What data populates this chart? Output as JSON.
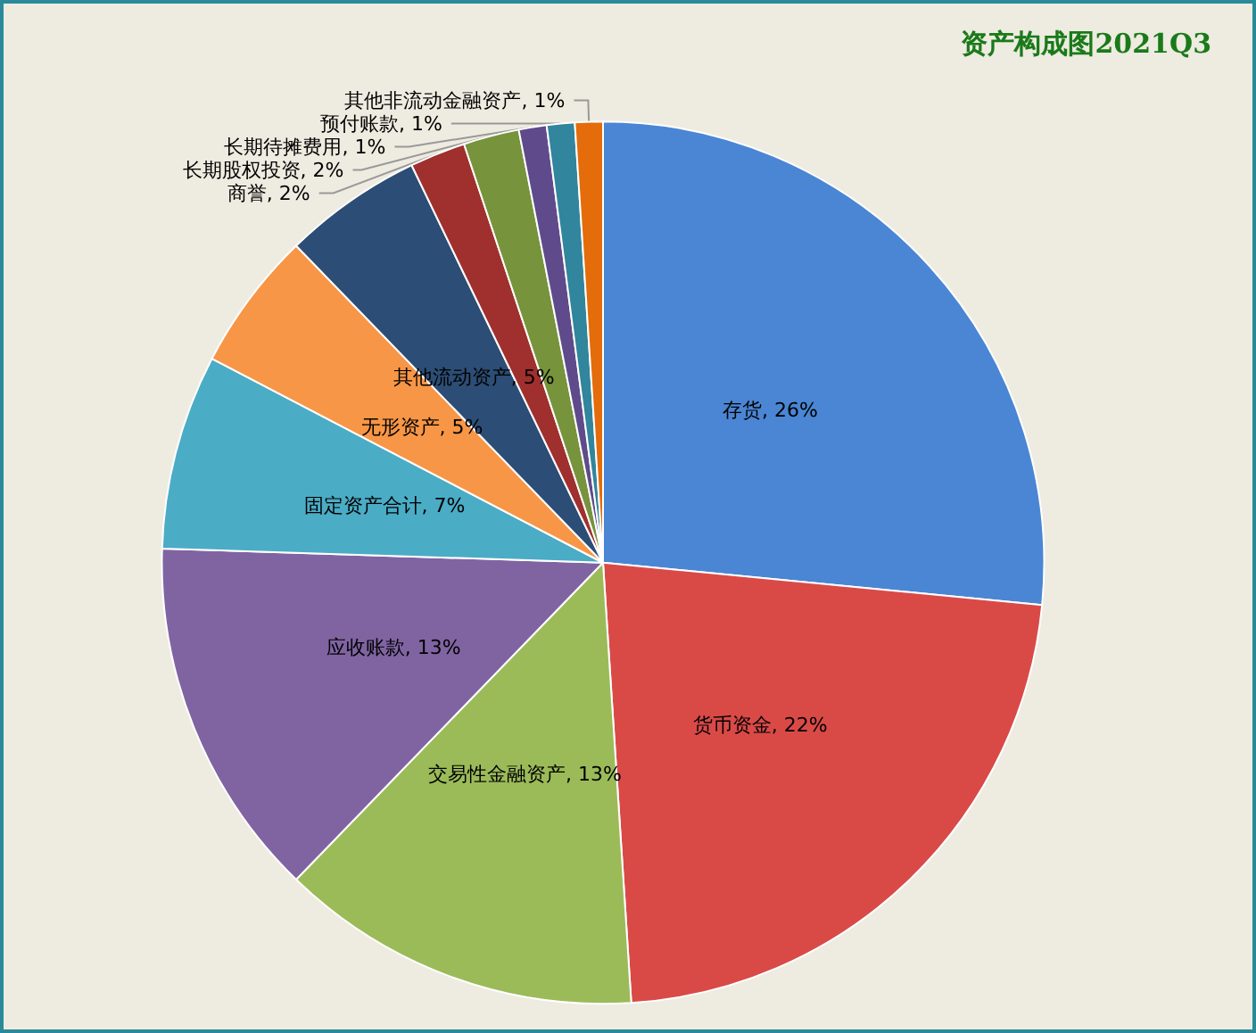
{
  "chart_data": {
    "type": "pie",
    "title": "资产构成图2021Q3",
    "categories": [
      "存货",
      "货币资金",
      "交易性金融资产",
      "应收账款",
      "固定资产合计",
      "无形资产",
      "其他流动资产",
      "商誉",
      "长期股权投资",
      "长期待摊费用",
      "预付账款",
      "其他非流动金融资产"
    ],
    "values": [
      26,
      22,
      13,
      13,
      7,
      5,
      5,
      2,
      2,
      1,
      1,
      1
    ],
    "value_labels": [
      "26%",
      "22%",
      "13%",
      "13%",
      "7%",
      "5%",
      "5%",
      "2%",
      "2%",
      "1%",
      "1%",
      "1%"
    ],
    "colors": [
      "#4a86d4",
      "#d94a47",
      "#9bbb59",
      "#8064a2",
      "#4bacc6",
      "#f79646",
      "#2c4d75",
      "#a0302d",
      "#77933c",
      "#5f4b8b",
      "#31859c",
      "#e46c0a"
    ],
    "legend": false
  }
}
